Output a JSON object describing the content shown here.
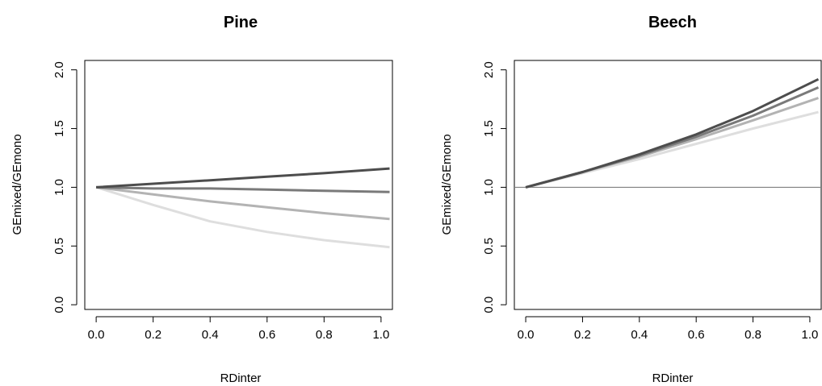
{
  "chart_data": [
    {
      "type": "line",
      "title": "Pine",
      "xlabel": "RDinter",
      "ylabel": "GEmixed/GEmono",
      "xlim": [
        -0.04,
        1.04
      ],
      "ylim": [
        -0.04,
        2.08
      ],
      "xticks": [
        "0.0",
        "0.2",
        "0.4",
        "0.6",
        "0.8",
        "1.0"
      ],
      "yticks": [
        "0.0",
        "0.5",
        "1.0",
        "1.5",
        "2.0"
      ],
      "hline": null,
      "series": [
        {
          "color": "#4d4d4d",
          "x": [
            0,
            0.2,
            0.4,
            0.6,
            0.8,
            1.03
          ],
          "y": [
            1.0,
            1.03,
            1.06,
            1.09,
            1.12,
            1.16
          ]
        },
        {
          "color": "#7a7a7a",
          "x": [
            0,
            0.2,
            0.4,
            0.6,
            0.8,
            1.03
          ],
          "y": [
            1.0,
            0.99,
            0.99,
            0.98,
            0.97,
            0.96
          ]
        },
        {
          "color": "#b3b3b3",
          "x": [
            0,
            0.2,
            0.4,
            0.6,
            0.8,
            1.03
          ],
          "y": [
            1.0,
            0.94,
            0.88,
            0.83,
            0.78,
            0.73
          ]
        },
        {
          "color": "#dedede",
          "x": [
            0,
            0.2,
            0.4,
            0.6,
            0.8,
            1.03
          ],
          "y": [
            1.0,
            0.85,
            0.71,
            0.62,
            0.55,
            0.49
          ]
        }
      ]
    },
    {
      "type": "line",
      "title": "Beech",
      "xlabel": "RDinter",
      "ylabel": "GEmixed/GEmono",
      "xlim": [
        -0.04,
        1.04
      ],
      "ylim": [
        -0.04,
        2.08
      ],
      "xticks": [
        "0.0",
        "0.2",
        "0.4",
        "0.6",
        "0.8",
        "1.0"
      ],
      "yticks": [
        "0.0",
        "0.5",
        "1.0",
        "1.5",
        "2.0"
      ],
      "hline": 1.0,
      "series": [
        {
          "color": "#4d4d4d",
          "x": [
            0,
            0.2,
            0.4,
            0.6,
            0.8,
            1.03
          ],
          "y": [
            1.0,
            1.13,
            1.28,
            1.45,
            1.65,
            1.92
          ]
        },
        {
          "color": "#7a7a7a",
          "x": [
            0,
            0.2,
            0.4,
            0.6,
            0.8,
            1.03
          ],
          "y": [
            1.0,
            1.13,
            1.27,
            1.43,
            1.61,
            1.85
          ]
        },
        {
          "color": "#b3b3b3",
          "x": [
            0,
            0.2,
            0.4,
            0.6,
            0.8,
            1.03
          ],
          "y": [
            1.0,
            1.13,
            1.26,
            1.41,
            1.57,
            1.76
          ]
        },
        {
          "color": "#dedede",
          "x": [
            0,
            0.2,
            0.4,
            0.6,
            0.8,
            1.03
          ],
          "y": [
            1.0,
            1.12,
            1.24,
            1.37,
            1.5,
            1.64
          ]
        }
      ]
    }
  ]
}
